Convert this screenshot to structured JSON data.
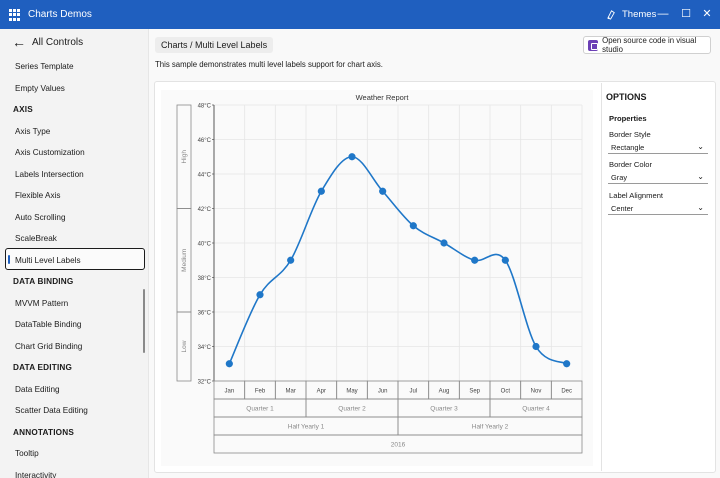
{
  "window": {
    "title": "Charts Demos",
    "themes_label": "Themes",
    "minimize": "—",
    "maximize": "☐",
    "close": "✕"
  },
  "sidebar": {
    "back_label": "All Controls",
    "items": [
      {
        "label": "Series Template",
        "kind": "item"
      },
      {
        "label": "Empty Values",
        "kind": "item"
      },
      {
        "label": "AXIS",
        "kind": "header"
      },
      {
        "label": "Axis Type",
        "kind": "item"
      },
      {
        "label": "Axis Customization",
        "kind": "item"
      },
      {
        "label": "Labels Intersection",
        "kind": "item"
      },
      {
        "label": "Flexible Axis",
        "kind": "item"
      },
      {
        "label": "Auto Scrolling",
        "kind": "item"
      },
      {
        "label": "ScaleBreak",
        "kind": "item"
      },
      {
        "label": "Multi Level Labels",
        "kind": "item",
        "selected": true
      },
      {
        "label": "DATA BINDING",
        "kind": "header"
      },
      {
        "label": "MVVM Pattern",
        "kind": "item"
      },
      {
        "label": "DataTable Binding",
        "kind": "item"
      },
      {
        "label": "Chart Grid Binding",
        "kind": "item"
      },
      {
        "label": "DATA EDITING",
        "kind": "header"
      },
      {
        "label": "Data Editing",
        "kind": "item"
      },
      {
        "label": "Scatter Data Editing",
        "kind": "item"
      },
      {
        "label": "ANNOTATIONS",
        "kind": "header"
      },
      {
        "label": "Tooltip",
        "kind": "item"
      },
      {
        "label": "Interactivity",
        "kind": "item"
      }
    ]
  },
  "main": {
    "breadcrumb_root": "Charts",
    "breadcrumb_sep": " / ",
    "breadcrumb_current": "Multi Level Labels",
    "source_button": "Open source code in visual studio",
    "description": "This sample demonstrates multi level labels support for chart axis."
  },
  "options": {
    "title": "OPTIONS",
    "subtitle": "Properties",
    "fields": [
      {
        "label": "Border Style",
        "value": "Rectangle"
      },
      {
        "label": "Border Color",
        "value": "Gray"
      },
      {
        "label": "Label Alignment",
        "value": "Center"
      }
    ]
  },
  "chart_data": {
    "type": "line",
    "title": "Weather Report",
    "categories": [
      "Jan",
      "Feb",
      "Mar",
      "Apr",
      "May",
      "Jun",
      "Jul",
      "Aug",
      "Sep",
      "Oct",
      "Nov",
      "Dec"
    ],
    "series": [
      {
        "values": [
          33,
          37,
          39,
          43,
          45,
          43,
          41,
          40,
          39,
          39,
          34,
          33
        ],
        "color": "#1f77c8"
      }
    ],
    "ylim": [
      32,
      48
    ],
    "yticks": [
      "32°C",
      "34°C",
      "36°C",
      "38°C",
      "40°C",
      "42°C",
      "44°C",
      "46°C",
      "48°C"
    ],
    "y_levels": [
      {
        "label": "Low",
        "from": 32,
        "to": 36
      },
      {
        "label": "Medium",
        "from": 36,
        "to": 42
      },
      {
        "label": "High",
        "from": 42,
        "to": 48
      }
    ],
    "x_levels": [
      [
        {
          "label": "Quarter 1",
          "from": 0,
          "to": 2
        },
        {
          "label": "Quarter 2",
          "from": 3,
          "to": 5
        },
        {
          "label": "Quarter 3",
          "from": 6,
          "to": 8
        },
        {
          "label": "Quarter 4",
          "from": 9,
          "to": 11
        }
      ],
      [
        {
          "label": "Half Yearly 1",
          "from": 0,
          "to": 5
        },
        {
          "label": "Half Yearly 2",
          "from": 6,
          "to": 11
        }
      ],
      [
        {
          "label": "2016",
          "from": 0,
          "to": 11
        }
      ]
    ],
    "grid": true,
    "border_style": "Rectangle",
    "border_color": "#8a8a8a"
  }
}
